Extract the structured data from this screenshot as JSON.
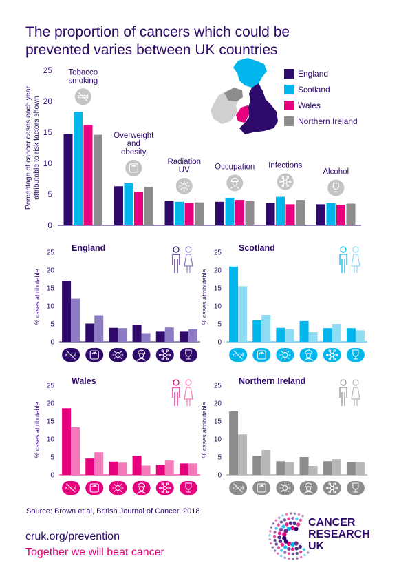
{
  "title": "The proportion of cancers which could be prevented varies between UK countries",
  "source": "Source: Brown et al, British Journal of Cancer, 2018",
  "footer": {
    "url": "cruk.org/prevention",
    "tagline": "Together we will beat cancer"
  },
  "logo": {
    "line1": "CANCER",
    "line2": "RESEARCH",
    "line3": "UK"
  },
  "colors": {
    "england": "#2e0a6b",
    "england_light": "#8d7bc4",
    "scotland": "#00b6ed",
    "scotland_light": "#8fdcf5",
    "wales": "#e6007e",
    "wales_light": "#f47ab9",
    "ni": "#8c8c8c",
    "ni_light": "#b8b8b8",
    "icon_gray": "#c4c4c4"
  },
  "legend": [
    "England",
    "Scotland",
    "Wales",
    "Northern Ireland"
  ],
  "chart_data": [
    {
      "type": "bar",
      "title": "",
      "ylabel": "Percentage of cancer cases each year attributable to risk factors shown",
      "ylim": [
        0,
        25
      ],
      "yticks": [
        0,
        5,
        10,
        15,
        20,
        25
      ],
      "categories": [
        "Tobacco smoking",
        "Overweight and obesity",
        "Radiation UV",
        "Occupation",
        "Infections",
        "Alcohol"
      ],
      "category_icons": [
        "no-smoking-icon",
        "scale-icon",
        "sun-icon",
        "worker-icon",
        "virus-icon",
        "wine-glass-icon"
      ],
      "series": [
        {
          "name": "England",
          "values": [
            14.7,
            6.3,
            3.9,
            3.8,
            3.6,
            3.4
          ]
        },
        {
          "name": "Scotland",
          "values": [
            18.3,
            6.8,
            3.8,
            4.4,
            4.6,
            3.6
          ]
        },
        {
          "name": "Wales",
          "values": [
            16.2,
            5.4,
            3.6,
            4.1,
            3.4,
            3.3
          ]
        },
        {
          "name": "Northern Ireland",
          "values": [
            14.6,
            6.2,
            3.7,
            3.9,
            4.1,
            3.5
          ]
        }
      ],
      "legend_position": "top-right"
    },
    {
      "type": "bar",
      "title": "England",
      "ylabel": "% cases attributable",
      "ylim": [
        0,
        25
      ],
      "yticks": [
        0,
        5,
        10,
        15,
        20,
        25
      ],
      "series": [
        {
          "name": "male",
          "values": [
            17.1,
            5.1,
            3.9,
            4.8,
            3.0,
            3.0
          ]
        },
        {
          "name": "female",
          "values": [
            12.0,
            7.4,
            3.8,
            2.4,
            4.0,
            3.5
          ]
        }
      ]
    },
    {
      "type": "bar",
      "title": "Scotland",
      "ylabel": "% cases attributable",
      "ylim": [
        0,
        25
      ],
      "yticks": [
        0,
        5,
        10,
        15,
        20,
        25
      ],
      "series": [
        {
          "name": "male",
          "values": [
            21.0,
            6.0,
            3.9,
            5.8,
            3.8,
            3.8
          ]
        },
        {
          "name": "female",
          "values": [
            15.5,
            7.5,
            3.5,
            2.7,
            5.0,
            3.2
          ]
        }
      ]
    },
    {
      "type": "bar",
      "title": "Wales",
      "ylabel": "% cases attributable",
      "ylim": [
        0,
        25
      ],
      "yticks": [
        0,
        5,
        10,
        15,
        20,
        25
      ],
      "series": [
        {
          "name": "male",
          "values": [
            18.6,
            4.6,
            3.7,
            5.3,
            2.8,
            3.2
          ]
        },
        {
          "name": "female",
          "values": [
            13.3,
            6.3,
            3.4,
            2.6,
            4.0,
            3.2
          ]
        }
      ]
    },
    {
      "type": "bar",
      "title": "Northern Ireland",
      "ylabel": "% cases attributable",
      "ylim": [
        0,
        25
      ],
      "yticks": [
        0,
        5,
        10,
        15,
        20,
        25
      ],
      "series": [
        {
          "name": "male",
          "values": [
            17.7,
            5.3,
            3.8,
            5.0,
            3.8,
            3.5
          ]
        },
        {
          "name": "female",
          "values": [
            11.3,
            6.9,
            3.5,
            2.5,
            4.4,
            3.5
          ]
        }
      ]
    }
  ]
}
